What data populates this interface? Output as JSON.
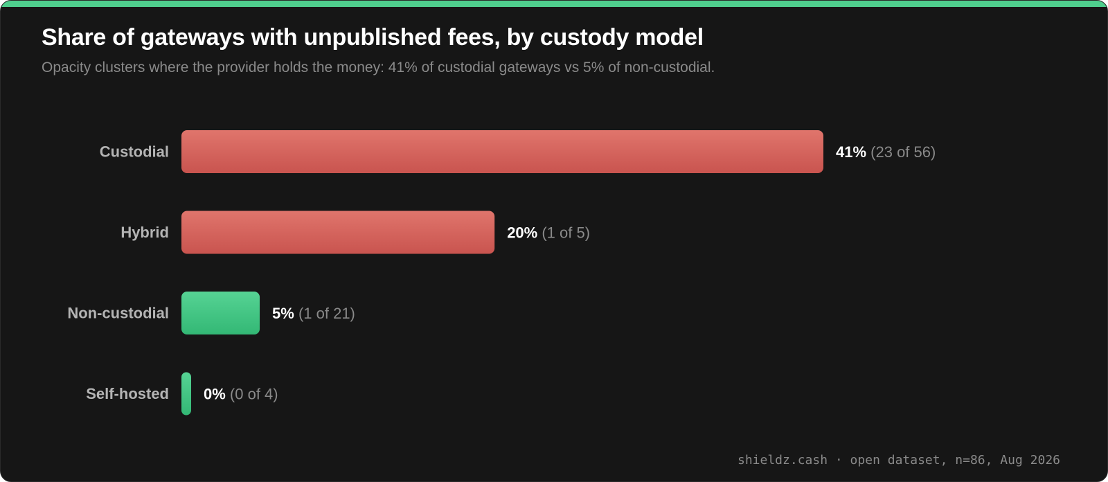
{
  "header": {
    "title": "Share of gateways with unpublished fees, by custody model",
    "subtitle": "Opacity clusters where the provider holds the money: 41% of custodial gateways vs 5% of non-custodial."
  },
  "footer": {
    "text": "shieldz.cash · open dataset, n=86, Aug 2026"
  },
  "colors": {
    "accent": "#4fce8d",
    "custodial_bar": "#d9635c",
    "noncustodial_bar": "#45c985",
    "background": "#161616"
  },
  "chart_data": {
    "type": "bar",
    "orientation": "horizontal",
    "title": "Share of gateways with unpublished fees, by custody model",
    "subtitle": "Opacity clusters where the provider holds the money: 41% of custodial gateways vs 5% of non-custodial.",
    "categories": [
      "Custodial",
      "Hybrid",
      "Non-custodial",
      "Self-hosted"
    ],
    "values": [
      41,
      20,
      5,
      0
    ],
    "value_labels": [
      "41%",
      "20%",
      "5%",
      "0%"
    ],
    "count_labels": [
      "(23 of 56)",
      "(1 of 5)",
      "(1 of 21)",
      "(0 of 4)"
    ],
    "color_groups": [
      "red",
      "red",
      "green",
      "green"
    ],
    "xlim": [
      0,
      41
    ],
    "grid": false,
    "legend": "none"
  }
}
